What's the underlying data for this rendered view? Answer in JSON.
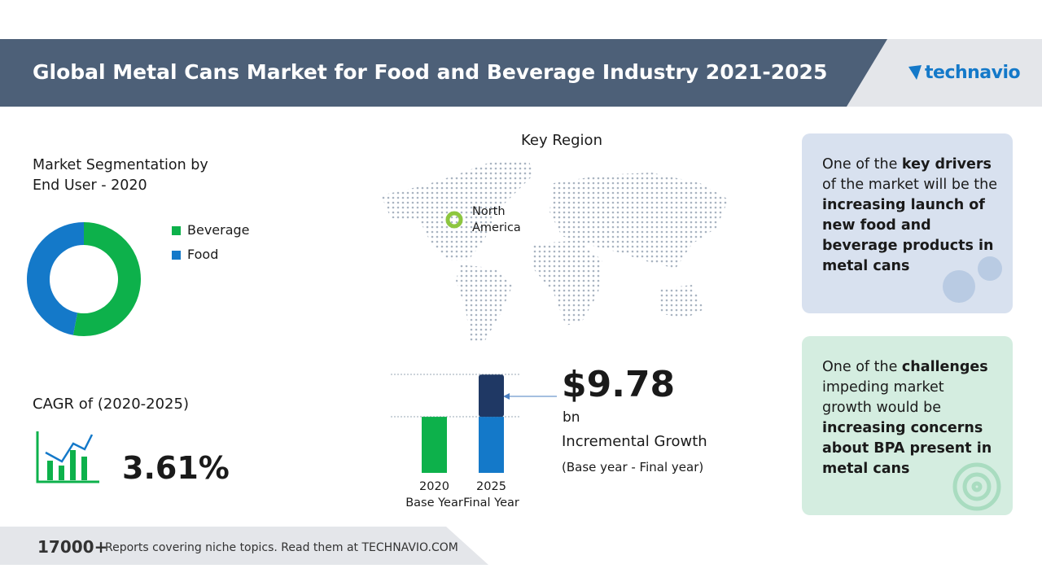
{
  "header": {
    "title": "Global Metal Cans Market for Food and Beverage Industry 2021-2025",
    "logo": "technavio"
  },
  "segmentation": {
    "title": "Market Segmentation by End User - 2020",
    "type": "pie",
    "series": [
      {
        "name": "Beverage",
        "color": "#0db14b",
        "value": 53
      },
      {
        "name": "Food",
        "color": "#1479c9",
        "value": 47
      }
    ]
  },
  "cagr": {
    "label": "CAGR of (2020-2025)",
    "value": "3.61%"
  },
  "key_region": {
    "title": "Key Region",
    "region": "North America"
  },
  "growth": {
    "categories": [
      {
        "year": "2020",
        "label": "Base Year"
      },
      {
        "year": "2025",
        "label": "Final Year"
      }
    ],
    "base": 13,
    "increment": 9.78,
    "increment_label": "$9.78",
    "unit": "bn",
    "caption": "Incremental Growth",
    "note": "(Base year - Final year)",
    "colors": {
      "base_2020": "#0db14b",
      "base_2025": "#1479c9",
      "increment": "#1f3864"
    }
  },
  "drivers": {
    "parts": [
      {
        "text": "One of the ",
        "bold": false
      },
      {
        "text": "key drivers",
        "bold": true
      },
      {
        "text": " of the market will be the ",
        "bold": false
      },
      {
        "text": "increasing launch of new food and beverage products in metal cans",
        "bold": true
      }
    ]
  },
  "challenges": {
    "parts": [
      {
        "text": "One of the ",
        "bold": false
      },
      {
        "text": "challenges",
        "bold": true
      },
      {
        "text": " impeding market growth would be ",
        "bold": false
      },
      {
        "text": "increasing concerns about BPA present in metal cans",
        "bold": true
      }
    ]
  },
  "footer": {
    "count": "17000+",
    "text": "Reports covering niche topics. Read them at TECHNAVIO.COM"
  }
}
